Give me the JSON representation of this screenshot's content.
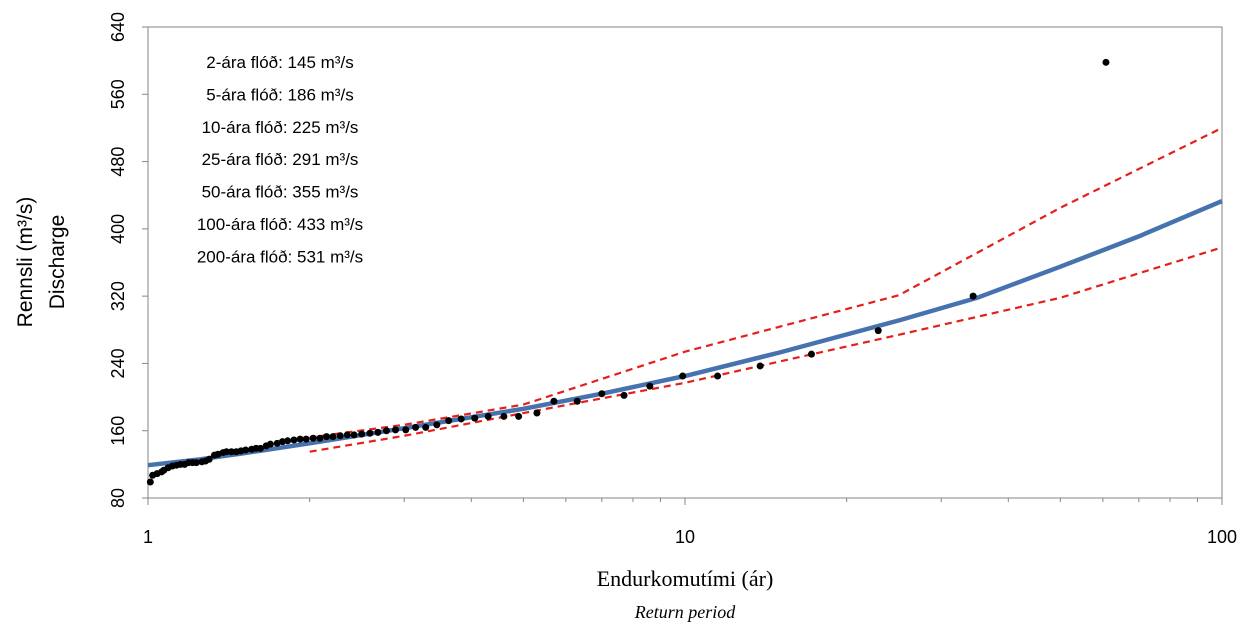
{
  "chart_data": {
    "type": "scatter",
    "x_label": "Endurkomutími (ár)",
    "x_sublabel": "Return period",
    "y_label": "Rennsli (m³/s)",
    "y_sublabel": "Discharge",
    "xscale": "log",
    "xlim": [
      1,
      100
    ],
    "xticks": [
      1,
      10,
      100
    ],
    "xminor_ticks": [
      2,
      3,
      4,
      5,
      6,
      7,
      8,
      9,
      20,
      30,
      40,
      50,
      60,
      70,
      80,
      90
    ],
    "ylim": [
      80,
      640
    ],
    "yticks": [
      80,
      160,
      240,
      320,
      400,
      480,
      560,
      640
    ],
    "grid": false,
    "annotations": [
      "2-ára flóð: 145 m³/s",
      "5-ára flóð: 186 m³/s",
      "10-ára flóð: 225 m³/s",
      "25-ára flóð: 291 m³/s",
      "50-ára flóð: 355 m³/s",
      "100-ára flóð: 433 m³/s",
      "200-ára flóð: 531 m³/s"
    ],
    "series": [
      {
        "type": "line",
        "dashed": true,
        "color": "#e3201b",
        "x": [
          2,
          3,
          5,
          10,
          25,
          50,
          100
        ],
        "values": [
          152,
          167,
          191,
          254,
          321,
          425,
          520
        ]
      },
      {
        "type": "line",
        "dashed": true,
        "color": "#e3201b",
        "x": [
          2,
          3,
          5,
          10,
          25,
          50,
          100
        ],
        "values": [
          135,
          154,
          181,
          217,
          274,
          318,
          378
        ]
      },
      {
        "type": "line",
        "dashed": false,
        "color": "#4673b0",
        "x": [
          1,
          1.25,
          1.5,
          2,
          3,
          5,
          7,
          10,
          15,
          25,
          35,
          50,
          70,
          100
        ],
        "values": [
          119,
          126,
          133,
          145,
          163,
          186,
          204,
          225,
          253,
          291,
          318,
          355,
          391,
          433
        ]
      },
      {
        "type": "scatter",
        "color": "#000000",
        "x": [
          60.8,
          34.4,
          22.9,
          17.2,
          13.8,
          11.5,
          9.9,
          8.6,
          7.7,
          7.0,
          6.3,
          5.7,
          5.3,
          4.9,
          4.6,
          4.3,
          4.06,
          3.83,
          3.63,
          3.45,
          3.29,
          3.15,
          3.02,
          2.89,
          2.78,
          2.68,
          2.59,
          2.5,
          2.42,
          2.35,
          2.28,
          2.21,
          2.15,
          2.09,
          2.03,
          1.97,
          1.92,
          1.87,
          1.82,
          1.78,
          1.74,
          1.69,
          1.66,
          1.62,
          1.59,
          1.56,
          1.52,
          1.49,
          1.46,
          1.43,
          1.4,
          1.38,
          1.35,
          1.33,
          1.3,
          1.28,
          1.26,
          1.23,
          1.21,
          1.19,
          1.17,
          1.15,
          1.13,
          1.11,
          1.09,
          1.07,
          1.06,
          1.04,
          1.02,
          1.01
        ],
        "values": [
          598,
          320,
          279,
          251,
          237,
          225,
          225,
          213,
          202,
          204,
          195,
          195,
          181,
          177,
          177,
          177,
          175,
          174,
          172,
          167,
          164,
          164,
          161,
          161,
          160,
          158,
          157,
          156,
          155,
          155,
          154,
          153,
          153,
          151,
          151,
          150,
          150,
          149,
          148,
          147,
          145,
          144,
          142,
          139,
          139,
          138,
          137,
          136,
          135,
          135,
          135,
          134,
          132,
          131,
          126,
          124,
          123,
          122,
          122,
          122,
          120,
          120,
          119,
          118,
          116,
          113,
          111,
          109,
          107,
          99
        ]
      }
    ]
  }
}
